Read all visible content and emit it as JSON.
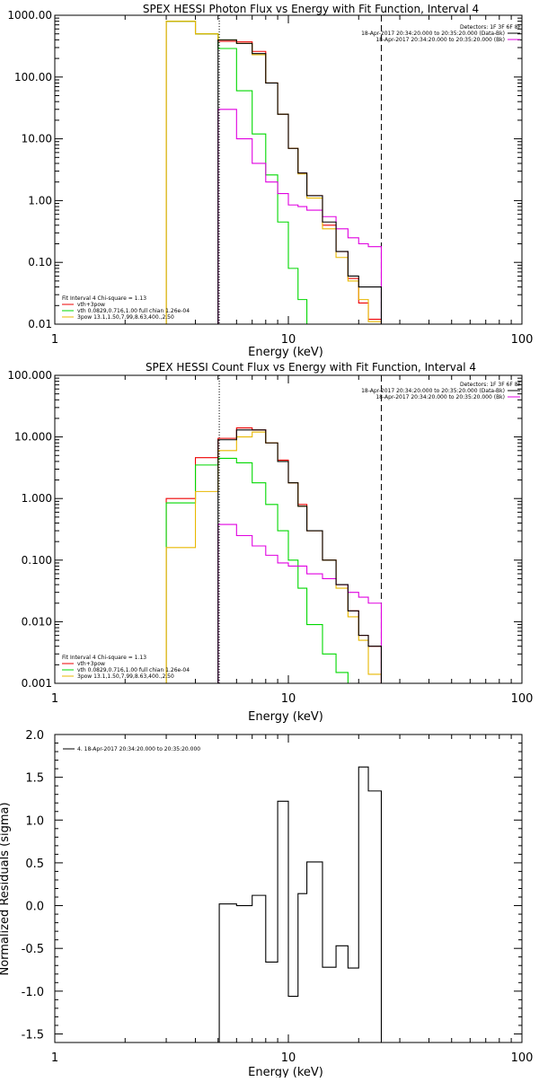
{
  "chart_data": [
    {
      "type": "line",
      "title": "SPEX HESSI Photon Flux vs Energy with Fit Function, Interval 4",
      "xlabel": "Energy (keV)",
      "ylabel": "",
      "xscale": "log",
      "yscale": "log",
      "xlim": [
        1,
        100
      ],
      "ylim": [
        0.01,
        1000
      ],
      "xtick_labels": [
        "1",
        "10",
        "100"
      ],
      "ytick_labels": [
        "1000.00",
        "100.00",
        "10.00",
        "1.00",
        "0.10",
        "0.01"
      ],
      "bin_edges": [
        3,
        4,
        5,
        6,
        7,
        8,
        9,
        10,
        11,
        12,
        14,
        16,
        18,
        20,
        22,
        25
      ],
      "vlines": [
        {
          "x": 5.06,
          "style": "dotted"
        },
        {
          "x": 25,
          "style": "dashed"
        }
      ],
      "legend_topright": [
        "Detectors: 1F 3F 6F 8F",
        "18-Apr-2017 20:34:20.000 to 20:35:20.000 (Data-Bk)",
        "18-Apr-2017 20:34:20.000 to 20:35:20.000 (Bk)"
      ],
      "legend_bottomleft": [
        "Fit Interval 4   Chi-square = 1.13",
        "vth+3pow",
        "vth 0.0829,0.716,1.00  full chian 1.26e-04",
        "3pow 13.1,1.50,7.99,8.63,400.,2.50"
      ],
      "series": [
        {
          "name": "18-Apr-2017 20:34:20.000 to 20:35:20.000 (Data-Bk)",
          "color": "#000000",
          "values": [
            null,
            null,
            400,
            350,
            240,
            80,
            25,
            7,
            2.8,
            1.2,
            0.45,
            0.15,
            0.06,
            0.04,
            0.04
          ]
        },
        {
          "name": "vth+3pow",
          "color": "#ee0000",
          "values": [
            800,
            500,
            380,
            370,
            260,
            80,
            25,
            7,
            2.8,
            1.2,
            0.4,
            0.15,
            0.055,
            0.022,
            0.012
          ]
        },
        {
          "name": "vth 0.0829,0.716,1.00  full chian 1.26e-04",
          "color": "#00d800",
          "values": [
            800,
            500,
            290,
            60,
            12,
            2.6,
            0.45,
            0.08,
            0.025,
            0.005,
            null,
            null,
            null,
            null,
            null
          ]
        },
        {
          "name": "3pow 13.1,1.50,7.99,8.63,400.,2.50",
          "color": "#e8b800",
          "values": [
            800,
            500,
            400,
            350,
            230,
            80,
            25,
            7,
            2.7,
            1.1,
            0.35,
            0.12,
            0.05,
            0.025,
            0.011
          ]
        },
        {
          "name": "18-Apr-2017 20:34:20.000 to 20:35:20.000 (Bk)",
          "color": "#e000e0",
          "values": [
            null,
            null,
            30,
            10,
            4,
            2,
            1.3,
            0.85,
            0.8,
            0.7,
            0.55,
            0.35,
            0.25,
            0.2,
            0.18
          ]
        }
      ]
    },
    {
      "type": "line",
      "title": "SPEX HESSI Count Flux vs Energy with Fit Function, Interval 4",
      "xlabel": "Energy (keV)",
      "ylabel": "",
      "xscale": "log",
      "yscale": "log",
      "xlim": [
        1,
        100
      ],
      "ylim": [
        0.001,
        100
      ],
      "xtick_labels": [
        "1",
        "10",
        "100"
      ],
      "ytick_labels": [
        "100.000",
        "10.000",
        "1.000",
        "0.100",
        "0.010",
        "0.001"
      ],
      "bin_edges": [
        3,
        4,
        5,
        6,
        7,
        8,
        9,
        10,
        11,
        12,
        14,
        16,
        18,
        20,
        22,
        25
      ],
      "vlines": [
        {
          "x": 5.06,
          "style": "dotted"
        },
        {
          "x": 25,
          "style": "dashed"
        }
      ],
      "legend_topright": [
        "Detectors: 1F 3F 6F 8F",
        "18-Apr-2017 20:34:20.000 to 20:35:20.000 (Data-Bk)",
        "18-Apr-2017 20:34:20.000 to 20:35:20.000 (Bk)"
      ],
      "legend_bottomleft": [
        "Fit Interval 4   Chi-square = 1.13",
        "vth+3pow",
        "vth 0.0829,0.716,1.00  full chian 1.26e-04",
        "3pow 13.1,1.50,7.99,8.63,400.,2.50"
      ],
      "series": [
        {
          "name": "18-Apr-2017 20:34:20.000 to 20:35:20.000 (Data-Bk)",
          "color": "#000000",
          "values": [
            null,
            null,
            9,
            13,
            13,
            8,
            4,
            1.8,
            0.75,
            0.3,
            0.1,
            0.04,
            0.015,
            0.006,
            0.004
          ]
        },
        {
          "name": "vth+3pow",
          "color": "#ee0000",
          "values": [
            1,
            4.6,
            9.5,
            14,
            13,
            8,
            4.2,
            1.8,
            0.8,
            0.3,
            0.1,
            0.04,
            0.015,
            0.006,
            0.004
          ]
        },
        {
          "name": "vth 0.0829,0.716,1.00  full chian 1.26e-04",
          "color": "#00d800",
          "values": [
            0.85,
            3.5,
            4.5,
            3.8,
            1.8,
            0.8,
            0.3,
            0.1,
            0.035,
            0.009,
            0.003,
            0.0015,
            null,
            null,
            null
          ]
        },
        {
          "name": "3pow 13.1,1.50,7.99,8.63,400.,2.50",
          "color": "#e8b800",
          "values": [
            0.16,
            1.3,
            6,
            10,
            12,
            8,
            4,
            1.8,
            0.75,
            0.3,
            0.1,
            0.035,
            0.012,
            0.005,
            0.0014
          ]
        },
        {
          "name": "18-Apr-2017 20:34:20.000 to 20:35:20.000 (Bk)",
          "color": "#e000e0",
          "values": [
            null,
            null,
            0.38,
            0.25,
            0.17,
            0.12,
            0.09,
            0.08,
            0.08,
            0.06,
            0.05,
            0.04,
            0.03,
            0.025,
            0.02
          ]
        }
      ]
    },
    {
      "type": "line",
      "title": "",
      "xlabel": "Energy (keV)",
      "ylabel": "Normalized Residuals (sigma)",
      "xscale": "log",
      "yscale": "linear",
      "xlim": [
        1,
        100
      ],
      "ylim": [
        -1.6,
        2.0
      ],
      "xtick_labels": [
        "1",
        "10",
        "100"
      ],
      "ytick_labels": [
        "2.0",
        "1.5",
        "1.0",
        "0.5",
        "0.0",
        "-0.5",
        "-1.0",
        "-1.5"
      ],
      "ytick_values": [
        2.0,
        1.5,
        1.0,
        0.5,
        0.0,
        -0.5,
        -1.0,
        -1.5
      ],
      "legend": [
        "4. 18-Apr-2017 20:34:20.000 to 20:35:20.000"
      ],
      "bin_edges": [
        5.06,
        6,
        7,
        8,
        9,
        10,
        11,
        12,
        14,
        16,
        18,
        20,
        22,
        25
      ],
      "series": [
        {
          "name": "4. 18-Apr-2017 20:34:20.000 to 20:35:20.000",
          "color": "#000000",
          "values": [
            0.02,
            0.0,
            0.12,
            -0.66,
            1.22,
            -1.06,
            0.14,
            0.51,
            -0.72,
            -0.47,
            -0.73,
            1.62,
            1.34
          ]
        }
      ]
    }
  ]
}
